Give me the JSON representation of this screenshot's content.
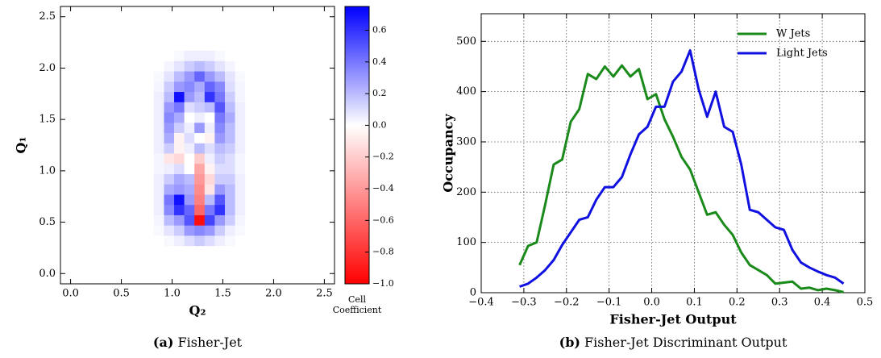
{
  "chart_data": [
    {
      "type": "heatmap",
      "x_label": "Q₂",
      "y_label": "Q₁",
      "xlim": [
        -0.1,
        2.6
      ],
      "ylim": [
        -0.1,
        2.6
      ],
      "xticks": [
        {
          "value": 0,
          "label": "0.0"
        },
        0.5,
        {
          "value": 1,
          "label": "1.0"
        },
        1.5,
        {
          "value": 2,
          "label": "2.0"
        },
        2.5
      ],
      "yticks": [
        {
          "value": 0,
          "label": "0.0"
        },
        0.5,
        {
          "value": 1,
          "label": "1.0"
        },
        1.5,
        {
          "value": 2,
          "label": "2.0"
        },
        2.5
      ],
      "x": [
        0.77,
        0.87,
        0.97,
        1.07,
        1.17,
        1.27,
        1.37,
        1.47,
        1.57,
        1.67,
        1.77
      ],
      "y": [
        0.32,
        0.42,
        0.52,
        0.62,
        0.72,
        0.82,
        0.92,
        1.02,
        1.12,
        1.22,
        1.32,
        1.42,
        1.52,
        1.62,
        1.72,
        1.82,
        1.92,
        2.02,
        2.12
      ],
      "values": [
        [
          0,
          0,
          0.02,
          0.05,
          0.1,
          0.15,
          0.1,
          0.05,
          0.02,
          0,
          0
        ],
        [
          0,
          0.02,
          0.08,
          0.15,
          0.3,
          0.35,
          0.3,
          0.15,
          0.05,
          0.02,
          0
        ],
        [
          0,
          0.03,
          0.2,
          0.3,
          0.5,
          -0.95,
          0.55,
          0.3,
          0.15,
          0.03,
          0
        ],
        [
          0,
          0.05,
          0.35,
          0.6,
          0.45,
          -0.6,
          0.4,
          0.6,
          0.2,
          0.05,
          0
        ],
        [
          0,
          0.05,
          0.4,
          0.7,
          0.3,
          -0.5,
          0.2,
          0.5,
          0.2,
          0.05,
          0
        ],
        [
          0,
          0.05,
          0.25,
          0.3,
          0.25,
          -0.45,
          -0.1,
          0.3,
          0.2,
          0.05,
          0
        ],
        [
          0,
          0.05,
          0.15,
          0.25,
          0.2,
          -0.4,
          -0.15,
          0.15,
          0.15,
          0.05,
          0
        ],
        [
          0,
          0.03,
          0.05,
          0.1,
          0,
          -0.35,
          -0.05,
          0.1,
          0.1,
          0.03,
          0
        ],
        [
          0,
          0.03,
          -0.1,
          -0.15,
          0,
          -0.2,
          0.05,
          0.15,
          0.1,
          0.03,
          0
        ],
        [
          0,
          0.05,
          0.15,
          -0.05,
          0.05,
          0.2,
          0.1,
          0.2,
          0.15,
          0.05,
          0
        ],
        [
          0,
          0.05,
          0.25,
          -0.05,
          0.1,
          0,
          -0.05,
          0.3,
          0.2,
          0.05,
          0
        ],
        [
          0,
          0.05,
          0.3,
          0.15,
          0.05,
          0.3,
          0.05,
          0.35,
          0.2,
          0.05,
          0
        ],
        [
          0,
          0.05,
          0.35,
          0.25,
          0,
          0.05,
          0,
          0.4,
          0.25,
          0.05,
          0
        ],
        [
          0,
          0.05,
          0.3,
          0.4,
          0.1,
          0.15,
          0.2,
          0.5,
          0.2,
          0.05,
          0
        ],
        [
          0,
          0.05,
          0.2,
          0.7,
          0.3,
          0.2,
          0.6,
          0.4,
          0.15,
          0.03,
          0
        ],
        [
          0,
          0.03,
          0.15,
          0.3,
          0.35,
          0.25,
          0.45,
          0.35,
          0.1,
          0.03,
          0
        ],
        [
          0,
          0.02,
          0.08,
          0.2,
          0.3,
          0.45,
          0.3,
          0.2,
          0.08,
          0.02,
          0
        ],
        [
          0,
          0,
          0.03,
          0.08,
          0.15,
          0.2,
          0.15,
          0.08,
          0.03,
          0,
          0
        ],
        [
          0,
          0,
          0,
          0.02,
          0.05,
          0.05,
          0.05,
          0.02,
          0,
          0,
          0
        ]
      ],
      "cmap": [
        "#ff0000",
        "#ffffff",
        "#0000ff"
      ],
      "zlim": [
        -1.0,
        0.75
      ],
      "colorbar_ticks": [
        {
          "value": -1.0,
          "label": "−1.0"
        },
        {
          "value": -0.8,
          "label": "−0.8"
        },
        {
          "value": -0.6,
          "label": "−0.6"
        },
        {
          "value": -0.4,
          "label": "−0.4"
        },
        {
          "value": -0.2,
          "label": "−0.2"
        },
        {
          "value": 0,
          "label": "0.0"
        },
        0.2,
        0.4,
        0.6
      ],
      "colorbar_label": [
        "Cell",
        "Coefficient"
      ],
      "caption_label": "(a)",
      "caption": "Fisher-Jet"
    },
    {
      "type": "line",
      "x_label": "Fisher-Jet Output",
      "y_label": "Occupancy",
      "xlim": [
        -0.4,
        0.5
      ],
      "ylim": [
        0,
        555
      ],
      "xticks": [
        {
          "value": -0.4,
          "label": "−0.4"
        },
        {
          "value": -0.3,
          "label": "−0.3"
        },
        {
          "value": -0.2,
          "label": "−0.2"
        },
        {
          "value": -0.1,
          "label": "−0.1"
        },
        {
          "value": 0,
          "label": "0.0"
        },
        0.1,
        0.2,
        0.3,
        0.4,
        0.5
      ],
      "yticks": [
        0,
        100,
        200,
        300,
        400,
        500
      ],
      "grid": true,
      "legend": "upper right",
      "x": [
        -0.31,
        -0.29,
        -0.27,
        -0.25,
        -0.23,
        -0.21,
        -0.19,
        -0.17,
        -0.15,
        -0.13,
        -0.11,
        -0.09,
        -0.07,
        -0.05,
        -0.03,
        -0.01,
        0.01,
        0.03,
        0.05,
        0.07,
        0.09,
        0.11,
        0.13,
        0.15,
        0.17,
        0.19,
        0.21,
        0.23,
        0.25,
        0.27,
        0.29,
        0.31,
        0.33,
        0.35,
        0.37,
        0.39,
        0.41,
        0.43,
        0.45
      ],
      "series": [
        {
          "name": "W Jets",
          "color": "#1a8a1a",
          "values": [
            55,
            93,
            100,
            175,
            255,
            265,
            340,
            365,
            435,
            425,
            450,
            430,
            452,
            430,
            445,
            385,
            395,
            345,
            310,
            270,
            245,
            200,
            155,
            160,
            135,
            115,
            80,
            55,
            45,
            35,
            18,
            20,
            22,
            8,
            10,
            5,
            8,
            5,
            1
          ]
        },
        {
          "name": "Light Jets",
          "color": "#1010e0",
          "values": [
            12,
            18,
            30,
            45,
            65,
            95,
            120,
            145,
            150,
            185,
            210,
            210,
            230,
            275,
            315,
            330,
            370,
            370,
            420,
            440,
            482,
            405,
            350,
            400,
            330,
            320,
            255,
            165,
            160,
            145,
            130,
            125,
            85,
            60,
            50,
            42,
            35,
            30,
            18
          ]
        }
      ],
      "caption_label": "(b)",
      "caption": "Fisher-Jet Discriminant Output"
    }
  ]
}
